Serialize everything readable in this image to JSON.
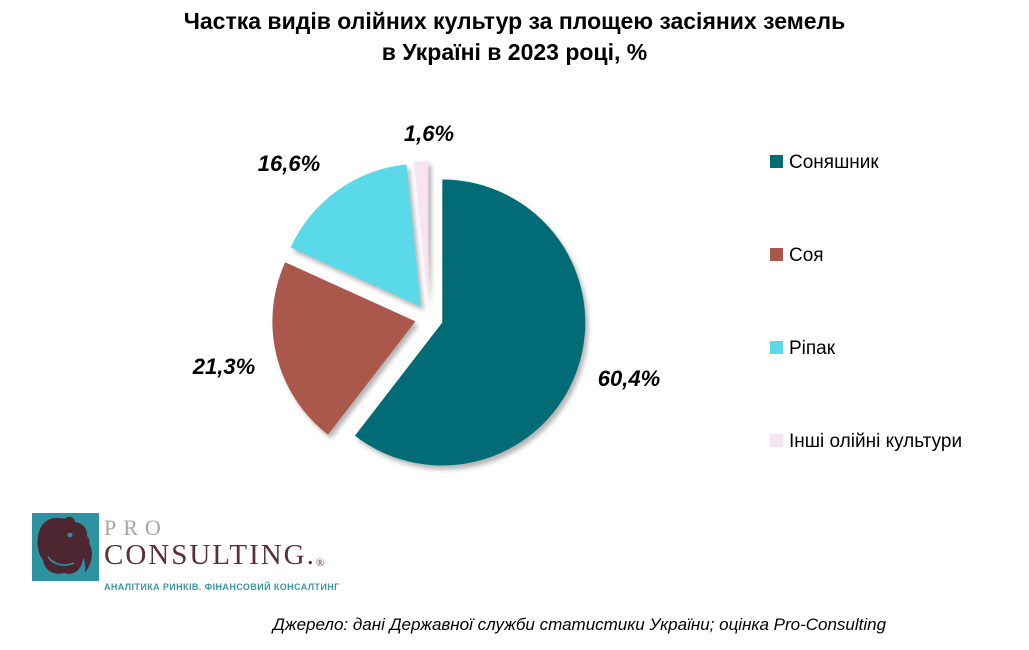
{
  "title": {
    "line1": "Частка видів олійних культур за площею засіяних земель",
    "line2": "в Україні в 2023 році, %"
  },
  "chart_data": {
    "type": "pie",
    "title": "Частка видів олійних культур за площею засіяних земель в Україні в 2023 році, %",
    "unit": "%",
    "direction": "clockwise",
    "start_angle_deg": 0,
    "exploded": true,
    "legend_position": "right",
    "slices": [
      {
        "label": "Соняшник",
        "value": 60.4,
        "display": "60,4%",
        "color": "#016C76"
      },
      {
        "label": "Соя",
        "value": 21.3,
        "display": "21,3%",
        "color": "#AA584C"
      },
      {
        "label": "Ріпак",
        "value": 16.6,
        "display": "16,6%",
        "color": "#5ADAE9"
      },
      {
        "label": "Інші олійні культури",
        "value": 1.6,
        "display": "1,6%",
        "color": "#FAE3F0"
      }
    ]
  },
  "logo": {
    "brand_line1": "PRO",
    "brand_line2": "CONSULTING.",
    "registered_mark": "®",
    "tagline": "АНАЛІТИКА РИНКІВ. ФІНАНСОВИЙ КОНСАЛТИНГ",
    "colors": {
      "box": "#2E93A0",
      "rhino": "#4E2631",
      "brand_top": "#A7A5A6",
      "brand_bottom": "#5B2E3A",
      "tagline": "#3B97A4"
    }
  },
  "source_note": "Джерело: дані Державної служби статистики України; оцінка Pro-Consulting"
}
